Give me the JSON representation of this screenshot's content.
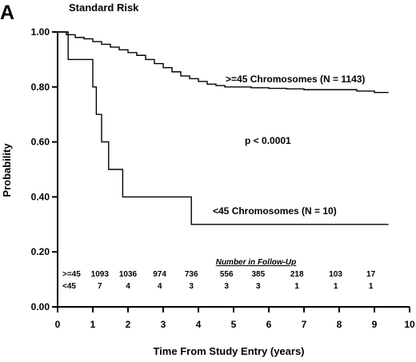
{
  "panel_letter": "A",
  "chart_data": {
    "type": "line",
    "title": "Standard Risk",
    "xlabel": "Time From Study Entry (years)",
    "ylabel": "Probability",
    "xlim": [
      0,
      10
    ],
    "ylim": [
      0,
      1
    ],
    "x_ticks": [
      0,
      1,
      2,
      3,
      4,
      5,
      6,
      7,
      8,
      9,
      10
    ],
    "y_ticks": [
      0.0,
      0.2,
      0.4,
      0.6,
      0.8,
      1.0
    ],
    "y_tick_labels": [
      "0.00",
      "0.20",
      "0.40",
      "0.60",
      "0.80",
      "1.00"
    ],
    "grid": false,
    "series": [
      {
        "name": ">=45 Chromosomes (N = 1143)",
        "step": true,
        "x": [
          0,
          0.25,
          0.5,
          0.75,
          1.0,
          1.25,
          1.5,
          1.75,
          2.0,
          2.25,
          2.5,
          2.75,
          3.0,
          3.25,
          3.5,
          3.75,
          4.0,
          4.25,
          4.5,
          4.75,
          5.0,
          5.5,
          6.0,
          6.5,
          7.0,
          7.5,
          8.0,
          8.5,
          9.0,
          9.4
        ],
        "y": [
          1.0,
          0.99,
          0.98,
          0.975,
          0.965,
          0.955,
          0.945,
          0.935,
          0.925,
          0.915,
          0.9,
          0.885,
          0.87,
          0.855,
          0.84,
          0.83,
          0.82,
          0.81,
          0.805,
          0.8,
          0.8,
          0.797,
          0.795,
          0.793,
          0.79,
          0.79,
          0.79,
          0.785,
          0.78,
          0.78
        ]
      },
      {
        "name": "<45 Chromosomes (N = 10)",
        "step": true,
        "x": [
          0,
          0.3,
          1.0,
          1.1,
          1.25,
          1.45,
          1.85,
          3.8,
          9.4
        ],
        "y": [
          1.0,
          0.9,
          0.8,
          0.7,
          0.6,
          0.5,
          0.4,
          0.3,
          0.3
        ]
      }
    ],
    "annotations": {
      "high_label": ">=45 Chromosomes (N = 1143)",
      "low_label": "<45 Chromosomes (N = 10)",
      "p_value": "p < 0.0001"
    },
    "follow_up": {
      "header": "Number in Follow-Up",
      "times": [
        1.2,
        2.0,
        2.9,
        3.8,
        4.8,
        5.7,
        6.8,
        7.9,
        8.9
      ],
      "rows": [
        {
          "label": ">=45",
          "values": [
            "1093",
            "1036",
            "974",
            "736",
            "556",
            "385",
            "218",
            "103",
            "17"
          ]
        },
        {
          "label": "<45",
          "values": [
            "7",
            "4",
            "4",
            "3",
            "3",
            "3",
            "1",
            "1",
            "1"
          ]
        }
      ]
    }
  }
}
